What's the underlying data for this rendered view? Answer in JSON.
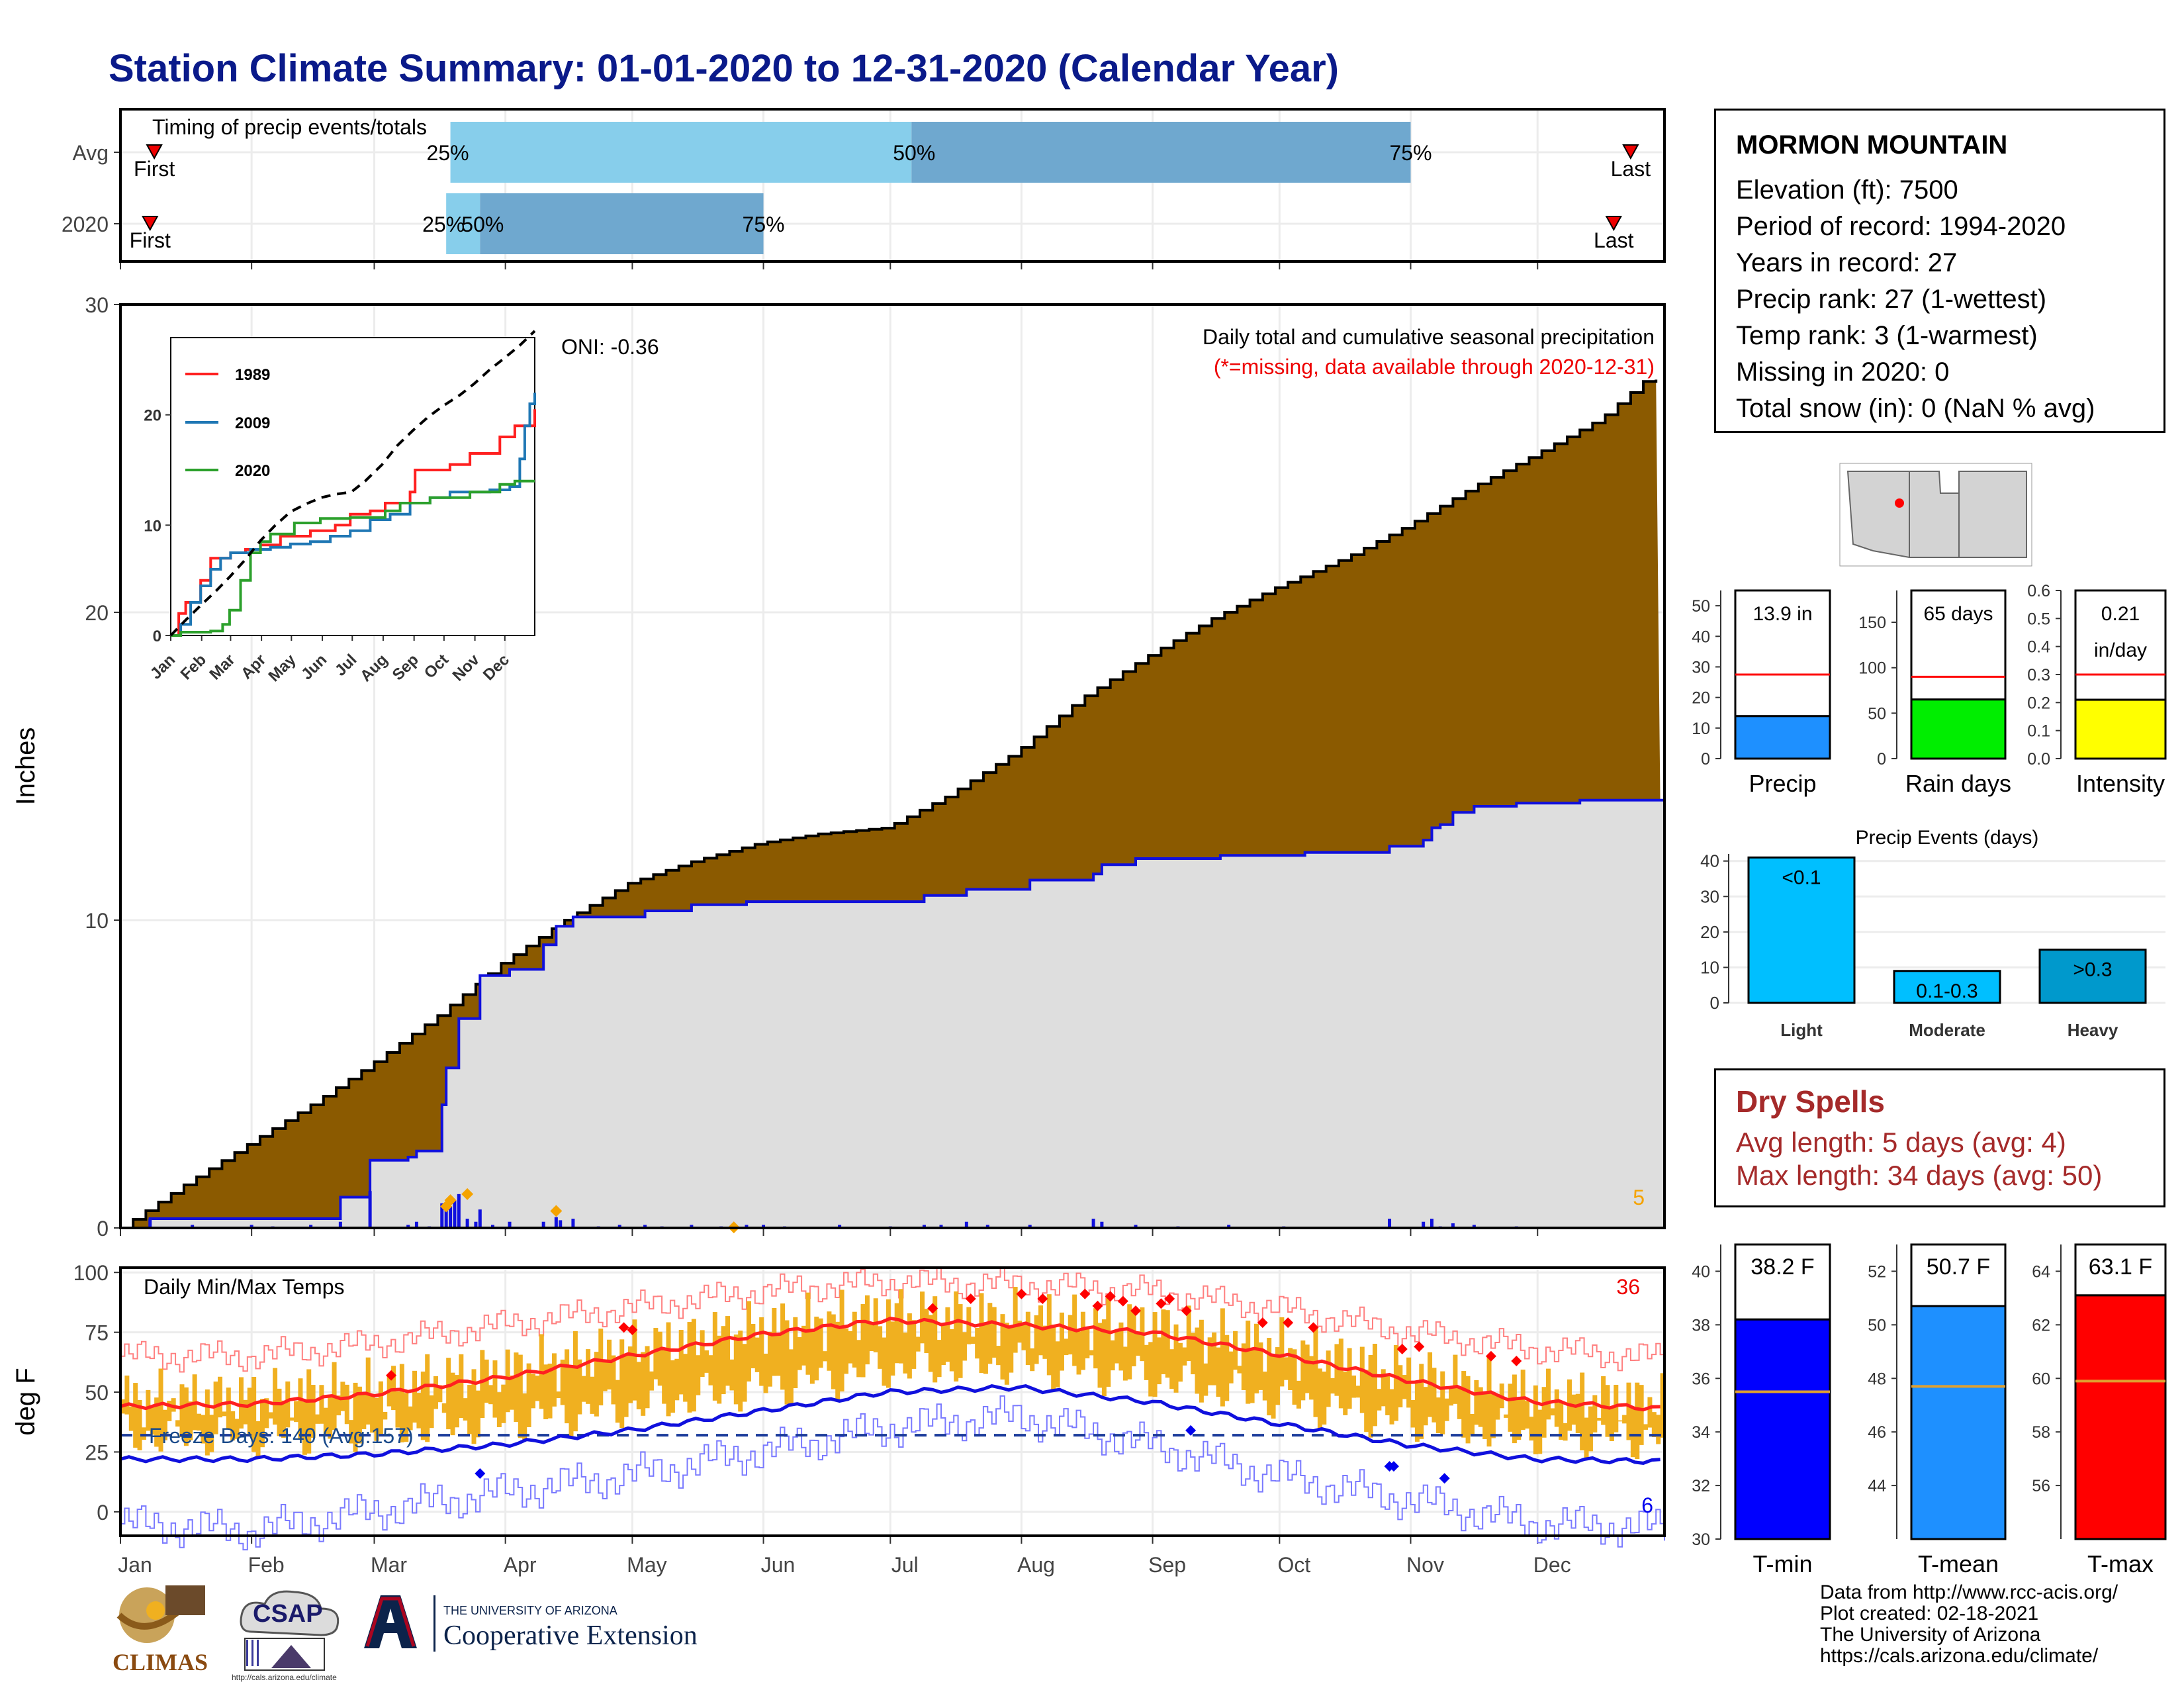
{
  "header": {
    "title": "Station Climate Summary: 01-01-2020 to 12-31-2020 (Calendar Year)"
  },
  "timing": {
    "title": "Timing of precip events/totals",
    "rows": [
      {
        "label": "Avg",
        "first_label": "First",
        "last_label": "Last",
        "p25_label": "25%",
        "p50_label": "50%",
        "p75_label": "75%",
        "first_doy": 8,
        "p25_doy": 78,
        "p50_doy": 187,
        "p75_doy": 305,
        "last_doy": 357
      },
      {
        "label": "2020",
        "first_label": "First",
        "last_label": "Last",
        "p25_label": "25%",
        "p50_label": "50%",
        "p75_label": "75%",
        "first_doy": 7,
        "p25_doy": 77,
        "p50_doy": 85,
        "p75_doy": 152,
        "last_doy": 353
      }
    ]
  },
  "station": {
    "name": "MORMON MOUNTAIN",
    "lines": [
      "Elevation (ft): 7500",
      "Period of record: 1994-2020",
      "Years in record: 27",
      "Precip rank: 27 (1-wettest)",
      "Temp rank: 3 (1-warmest)",
      "Missing in 2020: 0",
      "Total snow (in): 0 (NaN % avg)"
    ]
  },
  "dry_spells": {
    "title": "Dry Spells",
    "avg_line": "Avg length: 5 days (avg: 4)",
    "max_line": "Max length: 34 days (avg: 50)"
  },
  "credits": [
    "Data from http://www.rcc-acis.org/",
    "Plot created: 02-18-2021",
    "The University of Arizona",
    "https://cals.arizona.edu/climate/"
  ],
  "logos": {
    "climas": "CLIMAS",
    "csap": "CSAP",
    "csap_url": "http://cals.arizona.edu/climate",
    "ua_small": "THE UNIVERSITY OF ARIZONA",
    "ua_big": "Cooperative Extension"
  },
  "colors": {
    "avg_cum_fill": "#8b5a00",
    "obs_cum_fill": "#dedede",
    "obs_cum_line": "#1010dd",
    "daily_bar": "#1010dd",
    "temp_bar": "#f0b020",
    "tmax_avg": "#ff2020",
    "tmin_avg": "#1010dd",
    "light_blue": "#87ceeb",
    "mid_blue": "#6fa8cf",
    "deep_sky": "#00bfff",
    "green": "#00ee00",
    "yellow": "#ffff00"
  },
  "chart_data": [
    {
      "type": "area",
      "id": "cumulative_precip",
      "title": "Daily total and cumulative seasonal precipitation",
      "subtitle": "(*=missing, data available through 2020-12-31)",
      "annotation": "ONI: -0.36",
      "count_label": "5",
      "ylabel": "Inches",
      "ylim": [
        0,
        30
      ],
      "yticks": [
        0,
        10,
        20,
        30
      ],
      "months": [
        "Jan",
        "Feb",
        "Mar",
        "Apr",
        "May",
        "Jun",
        "Jul",
        "Aug",
        "Sep",
        "Oct",
        "Nov",
        "Dec"
      ],
      "series": [
        {
          "name": "avg",
          "x": [
            0,
            15,
            31,
            45,
            59,
            75,
            90,
            105,
            120,
            135,
            151,
            165,
            181,
            195,
            212,
            227,
            243,
            258,
            273,
            290,
            304,
            320,
            334,
            350,
            360,
            365
          ],
          "y": [
            0,
            1.4,
            2.8,
            4.0,
            5.3,
            6.9,
            8.6,
            10.0,
            11.2,
            11.9,
            12.5,
            12.8,
            13.0,
            14.0,
            15.5,
            17.2,
            18.6,
            19.8,
            20.8,
            21.8,
            22.8,
            24.1,
            25.1,
            26.3,
            27.5,
            27.6
          ]
        },
        {
          "name": "2020",
          "x": [
            0,
            7,
            31,
            52,
            52,
            59,
            68,
            70,
            76,
            77,
            80,
            85,
            92,
            100,
            103,
            107,
            124,
            135,
            148,
            152,
            170,
            182,
            190,
            200,
            215,
            230,
            232,
            240,
            260,
            280,
            300,
            308,
            310,
            312,
            315,
            320,
            330,
            345,
            365
          ],
          "y": [
            0,
            0.3,
            0.3,
            0.5,
            1.0,
            2.2,
            2.3,
            2.5,
            4.0,
            5.2,
            6.8,
            8.2,
            8.4,
            9.2,
            9.8,
            10.1,
            10.3,
            10.5,
            10.6,
            10.6,
            10.6,
            10.6,
            10.8,
            11.0,
            11.3,
            11.5,
            11.8,
            12.0,
            12.1,
            12.2,
            12.4,
            12.6,
            13.0,
            13.1,
            13.5,
            13.7,
            13.8,
            13.9,
            14.0
          ]
        }
      ],
      "daily_bars": {
        "x": [
          7,
          17,
          31,
          36,
          45,
          52,
          59,
          68,
          70,
          73,
          76,
          77,
          78,
          79,
          80,
          82,
          84,
          85,
          88,
          92,
          100,
          103,
          104,
          107,
          113,
          118,
          124,
          128,
          135,
          142,
          148,
          152,
          157,
          170,
          182,
          190,
          194,
          200,
          205,
          215,
          230,
          232,
          240,
          250,
          262,
          275,
          300,
          308,
          310,
          312,
          315,
          320,
          330
        ],
        "y": [
          0.3,
          0.1,
          0.1,
          0.05,
          0.1,
          0.2,
          1.2,
          0.1,
          0.2,
          0.05,
          0.8,
          0.6,
          0.7,
          0.9,
          1.1,
          0.3,
          0.2,
          0.6,
          0.1,
          0.2,
          0.2,
          0.35,
          0.25,
          0.3,
          0.05,
          0.1,
          0.1,
          0.05,
          0.1,
          0.05,
          0.1,
          0.1,
          0.05,
          0.1,
          0.05,
          0.1,
          0.1,
          0.2,
          0.1,
          0.1,
          0.3,
          0.2,
          0.1,
          0.05,
          0.1,
          0.05,
          0.3,
          0.2,
          0.3,
          0.05,
          0.15,
          0.1,
          0.05
        ]
      },
      "record_marks": {
        "x": [
          77,
          78,
          82,
          103,
          145
        ],
        "y": [
          0.7,
          0.9,
          1.1,
          0.55,
          0.02
        ]
      }
    },
    {
      "type": "line",
      "id": "inset_cumulative",
      "months": [
        "Jan",
        "Feb",
        "Mar",
        "Apr",
        "May",
        "Jun",
        "Jul",
        "Aug",
        "Sep",
        "Oct",
        "Nov",
        "Dec"
      ],
      "ylim": [
        0,
        27
      ],
      "yticks": [
        0,
        10,
        20
      ],
      "series": [
        {
          "name": "1989",
          "color": "#ff2020",
          "x": [
            0,
            8,
            15,
            30,
            40,
            60,
            75,
            90,
            110,
            140,
            165,
            180,
            200,
            215,
            240,
            245,
            280,
            300,
            330,
            345,
            365
          ],
          "y": [
            0,
            2,
            3,
            5,
            7,
            7.5,
            7.8,
            8.2,
            9,
            9.5,
            10,
            11,
            11.3,
            12,
            13,
            15,
            15.5,
            16.5,
            18,
            19,
            20.5
          ]
        },
        {
          "name": "2009",
          "color": "#1f77b4",
          "x": [
            0,
            10,
            20,
            30,
            40,
            50,
            60,
            80,
            100,
            120,
            140,
            160,
            180,
            200,
            220,
            240,
            260,
            280,
            300,
            320,
            340,
            350,
            355,
            360,
            365
          ],
          "y": [
            0,
            1,
            3,
            4.5,
            6,
            7,
            7.5,
            7.8,
            8,
            8.3,
            8.5,
            9,
            9.5,
            10.5,
            11,
            12,
            12.5,
            13,
            13,
            13.2,
            13.5,
            16,
            19,
            21,
            22
          ]
        },
        {
          "name": "2020",
          "color": "#2ca02c",
          "x": [
            0,
            10,
            40,
            52,
            59,
            70,
            80,
            90,
            100,
            124,
            150,
            180,
            215,
            230,
            260,
            300,
            330,
            345,
            365
          ],
          "y": [
            0,
            0.3,
            0.4,
            1,
            2.3,
            5,
            7.5,
            8.5,
            9.2,
            10.2,
            10.6,
            10.7,
            11.3,
            12,
            12.5,
            13,
            13.7,
            14,
            14
          ]
        },
        {
          "name": "avg",
          "color": "#000000",
          "dashed": true,
          "x": [
            0,
            15,
            31,
            45,
            59,
            75,
            90,
            105,
            120,
            135,
            151,
            165,
            181,
            195,
            212,
            227,
            243,
            258,
            273,
            290,
            304,
            320,
            334,
            350,
            365
          ],
          "y": [
            0,
            1.4,
            2.8,
            4.0,
            5.3,
            6.9,
            8.6,
            10.0,
            11.2,
            11.9,
            12.5,
            12.8,
            13.0,
            14.0,
            15.5,
            17.2,
            18.6,
            19.8,
            20.8,
            21.8,
            22.8,
            24.1,
            25.1,
            26.3,
            27.6
          ]
        }
      ]
    },
    {
      "type": "bar",
      "id": "precip_total",
      "title": "Precip",
      "value": 13.9,
      "value_label": "13.9 in",
      "avg": 27.5,
      "ylim": [
        0,
        55
      ],
      "yticks": [
        0,
        10,
        20,
        30,
        40,
        50
      ]
    },
    {
      "type": "bar",
      "id": "rain_days",
      "title": "Rain days",
      "value": 65,
      "value_label": "65 days",
      "avg": 90,
      "ylim": [
        0,
        185
      ],
      "yticks": [
        0,
        50,
        100,
        150
      ]
    },
    {
      "type": "bar",
      "id": "intensity",
      "title": "Intensity",
      "value": 0.21,
      "value_label": "0.21",
      "value_label_2": "in/day",
      "avg": 0.3,
      "ylim": [
        0,
        0.6
      ],
      "yticks": [
        0.0,
        0.1,
        0.2,
        0.3,
        0.4,
        0.5,
        0.6
      ]
    },
    {
      "type": "bar",
      "id": "precip_events",
      "title": "Precip Events (days)",
      "categories": [
        "Light",
        "Moderate",
        "Heavy"
      ],
      "values": [
        41,
        9,
        15
      ],
      "bar_labels": [
        "<0.1",
        "0.1-0.3",
        ">0.3"
      ],
      "ylim": [
        0,
        42
      ],
      "yticks": [
        0,
        10,
        20,
        30,
        40
      ]
    },
    {
      "type": "bar",
      "id": "daily_temps",
      "title": "Daily Min/Max Temps",
      "ylabel": "deg F",
      "ylim": [
        -10,
        102
      ],
      "yticks": [
        0,
        25,
        50,
        75,
        100
      ],
      "months": [
        "Jan",
        "Feb",
        "Mar",
        "Apr",
        "May",
        "Jun",
        "Jul",
        "Aug",
        "Sep",
        "Oct",
        "Nov",
        "Dec"
      ],
      "freeze_label": "Freeze Days: 140 (Avg:157)",
      "freeze_line": 32,
      "hot_count_label": "36",
      "cold_count_label": "6",
      "tmax_avg": {
        "x": [
          0,
          31,
          59,
          90,
          120,
          151,
          181,
          212,
          243,
          273,
          304,
          334,
          365
        ],
        "y": [
          44,
          45,
          49,
          56,
          65,
          74,
          80,
          78,
          75,
          66,
          55,
          46,
          43
        ]
      },
      "tmin_avg": {
        "x": [
          0,
          31,
          59,
          90,
          120,
          151,
          181,
          212,
          243,
          273,
          304,
          334,
          365
        ],
        "y": [
          22,
          22,
          24,
          28,
          34,
          42,
          50,
          52,
          46,
          37,
          28,
          22,
          21
        ]
      },
      "rec_max": {
        "x": [
          0,
          31,
          59,
          90,
          120,
          151,
          181,
          212,
          243,
          273,
          304,
          334,
          365
        ],
        "y": [
          65,
          65,
          70,
          78,
          85,
          92,
          96,
          95,
          92,
          85,
          75,
          68,
          64
        ]
      },
      "rec_min": {
        "x": [
          0,
          31,
          59,
          90,
          120,
          151,
          181,
          212,
          243,
          273,
          304,
          334,
          365
        ],
        "y": [
          -5,
          -8,
          0,
          8,
          15,
          25,
          35,
          40,
          28,
          15,
          5,
          -5,
          -7
        ]
      },
      "hot_marks": {
        "x": [
          64,
          119,
          121,
          192,
          201,
          213,
          218,
          228,
          231,
          234,
          237,
          240,
          246,
          248,
          252,
          270,
          276,
          282,
          303,
          307,
          324,
          330
        ],
        "y": [
          57,
          77,
          76,
          85,
          89,
          91,
          89,
          91,
          86,
          90,
          88,
          84,
          87,
          89,
          84,
          79,
          79,
          77,
          68,
          69,
          65,
          63
        ]
      },
      "cold_marks": {
        "x": [
          85,
          253,
          300,
          301,
          313
        ],
        "y": [
          16,
          34,
          19,
          19,
          14
        ]
      }
    },
    {
      "type": "bar",
      "id": "tmin",
      "title": "T-min",
      "value": 38.2,
      "value_label": "38.2 F",
      "avg": 35.5,
      "ylim": [
        30,
        41
      ],
      "yticks": [
        30,
        32,
        34,
        36,
        38,
        40
      ]
    },
    {
      "type": "bar",
      "id": "tmean",
      "title": "T-mean",
      "value": 50.7,
      "value_label": "50.7 F",
      "avg": 47.7,
      "ylim": [
        42,
        53
      ],
      "yticks": [
        44,
        46,
        48,
        50,
        52
      ]
    },
    {
      "type": "bar",
      "id": "tmax",
      "title": "T-max",
      "value": 63.1,
      "value_label": "63.1 F",
      "avg": 59.9,
      "ylim": [
        54,
        65
      ],
      "yticks": [
        56,
        58,
        60,
        62,
        64
      ]
    }
  ]
}
